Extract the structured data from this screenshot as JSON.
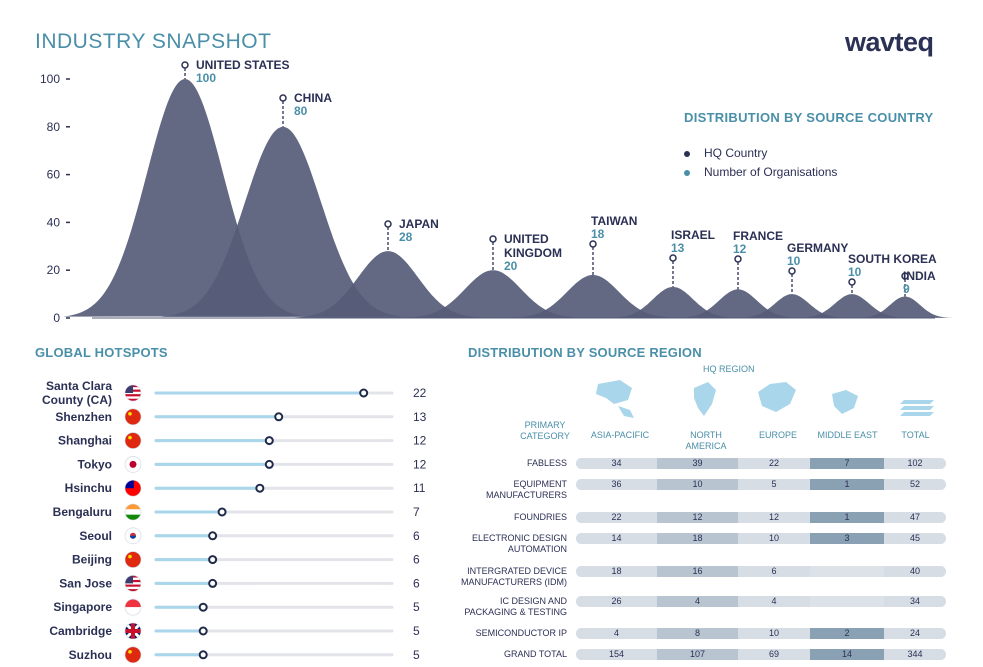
{
  "header": {
    "title": "INDUSTRY SNAPSHOT",
    "logo_text": "wavteq"
  },
  "chart_data": [
    {
      "type": "area",
      "title": "",
      "categories": [
        "UNITED STATES",
        "CHINA",
        "JAPAN",
        "UNITED KINGDOM",
        "TAIWAN",
        "ISRAEL",
        "FRANCE",
        "GERMANY",
        "SOUTH KOREA",
        "INDIA"
      ],
      "values": [
        100,
        80,
        28,
        20,
        18,
        13,
        12,
        10,
        10,
        9
      ],
      "ylim": [
        0,
        100
      ],
      "yticks": [
        "100",
        "80",
        "60",
        "40",
        "20",
        "0"
      ],
      "legend": {
        "title": "DISTRIBUTION BY SOURCE COUNTRY",
        "items": [
          {
            "label": "HQ Country",
            "color": "#2b3055"
          },
          {
            "label": "Number of Organisations",
            "color": "#4a8fa8"
          }
        ]
      }
    },
    {
      "type": "scatter",
      "title": "GLOBAL HOTSPOTS",
      "categories": [
        "Santa Clara County (CA)",
        "Shenzhen",
        "Shanghai",
        "Tokyo",
        "Hsinchu",
        "Bengaluru",
        "Seoul",
        "Beijing",
        "San Jose",
        "Singapore",
        "Cambridge",
        "Suzhou"
      ],
      "values": [
        22,
        13,
        12,
        12,
        11,
        7,
        6,
        6,
        6,
        5,
        5,
        5
      ],
      "flags": [
        "us",
        "cn",
        "cn",
        "jp",
        "tw",
        "in",
        "kr",
        "cn",
        "us",
        "sg",
        "gb",
        "cn"
      ],
      "xlim": [
        0,
        25
      ]
    },
    {
      "type": "table",
      "title": "DISTRIBUTION BY SOURCE REGION",
      "header_label": "HQ REGION",
      "row_header": "PRIMARY CATEGORY",
      "columns": [
        "ASIA-PACIFIC",
        "NORTH AMERICA",
        "EUROPE",
        "MIDDLE EAST",
        "TOTAL"
      ],
      "column_icons": [
        "asia-map-icon",
        "north-america-map-icon",
        "europe-map-icon",
        "middle-east-map-icon",
        "total-stripes-icon"
      ],
      "rows": [
        {
          "label": "FABLESS",
          "values": [
            "34",
            "39",
            "22",
            "7",
            "102"
          ]
        },
        {
          "label": "EQUIPMENT MANUFACTURERS",
          "values": [
            "36",
            "10",
            "5",
            "1",
            "52"
          ]
        },
        {
          "label": "FOUNDRIES",
          "values": [
            "22",
            "12",
            "12",
            "1",
            "47"
          ]
        },
        {
          "label": "ELECTRONIC DESIGN AUTOMATION",
          "values": [
            "14",
            "18",
            "10",
            "3",
            "45"
          ]
        },
        {
          "label": "INTERGRATED DEVICE MANUFACTURERS (IDM)",
          "values": [
            "18",
            "16",
            "6",
            "",
            "40"
          ]
        },
        {
          "label": "IC DESIGN AND PACKAGING & TESTING",
          "values": [
            "26",
            "4",
            "4",
            "",
            "34"
          ]
        },
        {
          "label": "SEMICONDUCTOR IP",
          "values": [
            "4",
            "8",
            "10",
            "2",
            "24"
          ]
        },
        {
          "label": "GRAND TOTAL",
          "values": [
            "154",
            "107",
            "69",
            "14",
            "344"
          ]
        }
      ],
      "colors": {
        "light": "#d6dde4",
        "mid": "#b8c5d1",
        "dark": "#8aa0b3",
        "icon": "#a9d6ea"
      }
    }
  ]
}
